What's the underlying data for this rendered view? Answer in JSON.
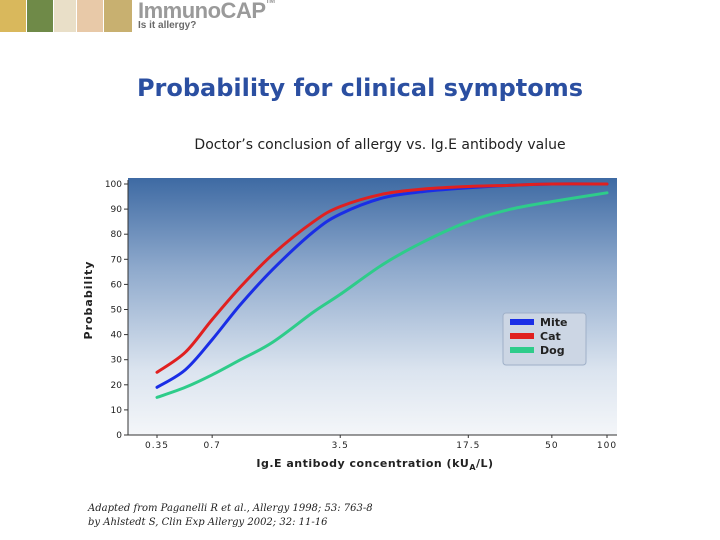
{
  "header": {
    "logo_main": "ImmunoCAP",
    "logo_tm": "TM",
    "logo_tagline": "Is it allergy?"
  },
  "slide_title": "Probability for clinical symptoms",
  "chart_title": "Doctor’s conclusion of allergy vs. Ig.E antibody value",
  "citation": {
    "line1": "Adapted from Paganelli R et al., Allergy 1998; 53: 763-8",
    "line2": "by Ahlstedt S, Clin Exp Allergy 2002; 32: 11-16"
  },
  "colors": {
    "title": "#2b4fa1",
    "plot_top": "#3e6aa3",
    "plot_bottom": "#f4f6f9",
    "mite": "#1a2ee6",
    "cat": "#e02020",
    "dog": "#2ecc8a"
  },
  "chart_data": {
    "type": "line",
    "title": "Doctor’s conclusion of allergy vs. Ig.E antibody value",
    "xlabel": "Ig.E antibody concentration (kU",
    "xlabel_sub": "A",
    "xlabel_tail": "/L)",
    "ylabel": "Probability",
    "x_scale": "log",
    "x_ticks": [
      "0.35",
      "0.7",
      "3.5",
      "17.5",
      "50",
      "100"
    ],
    "y_ticks": [
      "0",
      "10",
      "20",
      "30",
      "40",
      "50",
      "60",
      "70",
      "80",
      "90",
      "100"
    ],
    "ylim": [
      0,
      100
    ],
    "legend_position": "right",
    "series": [
      {
        "name": "Mite",
        "color": "#1a2ee6",
        "x": [
          0.35,
          0.5,
          0.7,
          1.0,
          1.5,
          2.5,
          3.5,
          6,
          10,
          17.5,
          30,
          50,
          100
        ],
        "y": [
          19,
          26,
          38,
          52,
          66,
          81,
          88,
          94.5,
          97,
          98.5,
          99.5,
          100,
          100
        ]
      },
      {
        "name": "Cat",
        "color": "#e02020",
        "x": [
          0.35,
          0.5,
          0.7,
          1.0,
          1.5,
          2.5,
          3.5,
          6,
          10,
          17.5,
          30,
          50,
          100
        ],
        "y": [
          25,
          33,
          46,
          59,
          72,
          85,
          91,
          96,
          98,
          99,
          99.5,
          100,
          100
        ]
      },
      {
        "name": "Dog",
        "color": "#2ecc8a",
        "x": [
          0.35,
          0.5,
          0.7,
          1.0,
          1.5,
          2.5,
          3.5,
          6,
          10,
          17.5,
          30,
          50,
          100
        ],
        "y": [
          15,
          19,
          24,
          30,
          37,
          49,
          56,
          68,
          77,
          85,
          90,
          93,
          96.5
        ]
      }
    ]
  }
}
